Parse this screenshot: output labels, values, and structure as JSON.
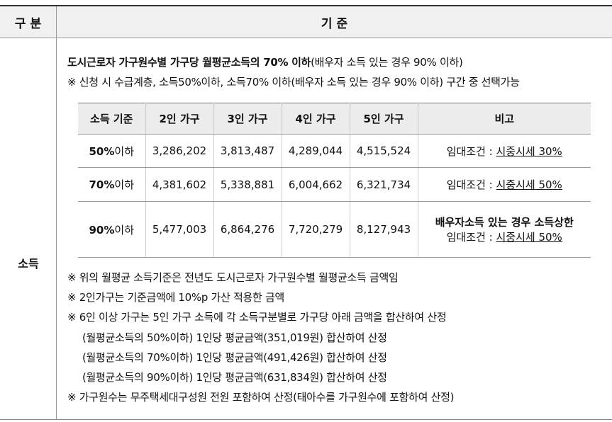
{
  "header": {
    "left": "구 분",
    "right": "기 준"
  },
  "section": "소득",
  "intro": {
    "bold": "도시근로자 가구원수별 가구당 월평균소득의 70% 이하",
    "rest": "(배우자 소득 있는 경우 90% 이하)",
    "note": "※ 신청 시 수급계층, 소득50%이하, 소득70% 이하(배우자 소득 있는 경우 90% 이하) 구간 중 선택가능"
  },
  "table": {
    "headers": [
      "소득 기준",
      "2인 가구",
      "3인 가구",
      "4인 가구",
      "5인 가구",
      "비고"
    ],
    "rows": [
      {
        "pct": "50%",
        "suffix": "이하",
        "v2": "3,286,202",
        "v3": "3,813,487",
        "v4": "4,289,044",
        "v5": "4,515,524",
        "note_bold": "",
        "note_prefix": "임대조건 : ",
        "note_link": "시중시세 30%"
      },
      {
        "pct": "70%",
        "suffix": "이하",
        "v2": "4,381,602",
        "v3": "5,338,881",
        "v4": "6,004,662",
        "v5": "6,321,734",
        "note_bold": "",
        "note_prefix": "임대조건 : ",
        "note_link": "시중시세 50%"
      },
      {
        "pct": "90%",
        "suffix": "이하",
        "v2": "5,477,003",
        "v3": "6,864,276",
        "v4": "7,720,279",
        "v5": "8,127,943",
        "note_bold": "배우자소득 있는 경우 소득상한",
        "note_prefix": "임대조건 : ",
        "note_link": "시중시세 50%"
      }
    ]
  },
  "notes": [
    "※ 위의 월평균 소득기준은 전년도 도시근로자 가구원수별 월평균소득 금액임",
    "※ 2인가구는 기준금액에 10%p 가산 적용한 금액",
    "※ 6인 이상 가구는 5인 가구 소득에 각 소득구분별로 가구당 아래 금액을 합산하여 산정",
    "(월평균소득의 50%이하) 1인당 평균금액(351,019원) 합산하여 산정",
    "(월평균소득의 70%이하) 1인당 평균금액(491,426원) 합산하여 산정",
    "(월평균소득의 90%이하) 1인당 평균금액(631,834원) 합산하여 산정",
    "※ 가구원수는 무주택세대구성원 전원 포함하여 산정(태아수를 가구원수에 포함하여 산정)"
  ]
}
